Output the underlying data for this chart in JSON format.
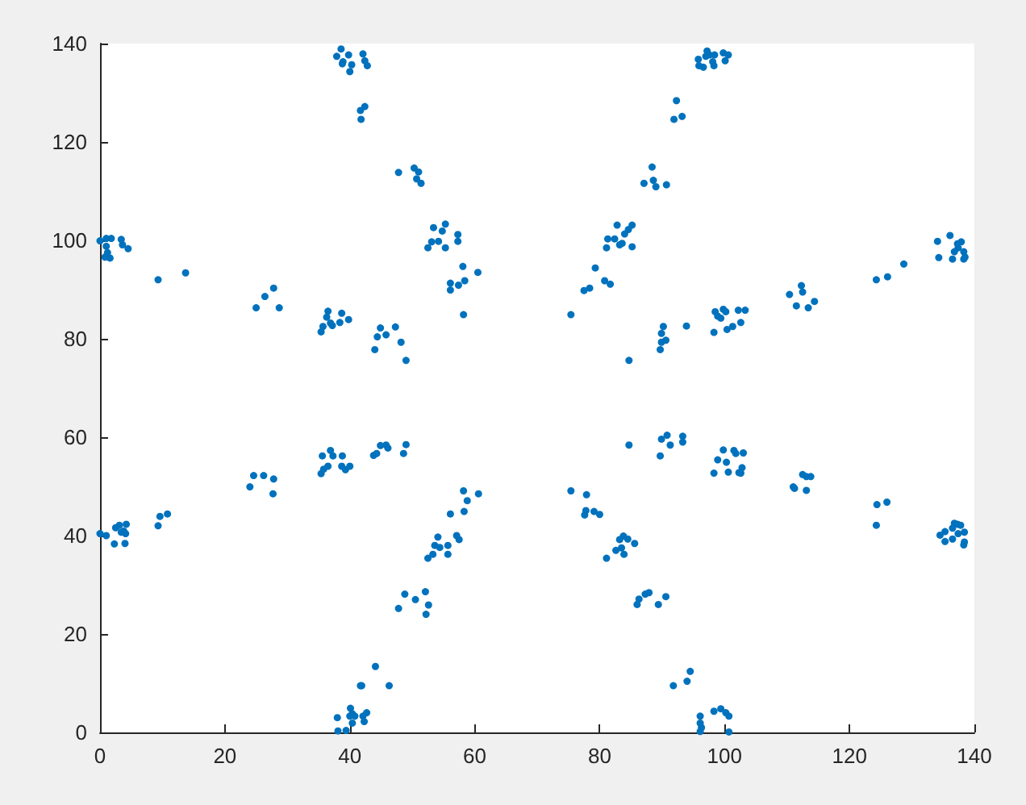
{
  "chart_data": {
    "type": "scatter",
    "marker": "circle",
    "grid": false,
    "legend": false,
    "xlim": [
      0,
      140
    ],
    "xticks": [
      0,
      20,
      40,
      60,
      80,
      100,
      120,
      140
    ],
    "ylim": [
      0,
      140
    ],
    "yticks": [
      0,
      20,
      40,
      60,
      80,
      100,
      120,
      140
    ],
    "series": [
      {
        "color": "#0072bd",
        "x": [
          0,
          1.0,
          1.8,
          3.4,
          0.8,
          1.6,
          1.2,
          3.6,
          4.5,
          1.0,
          9.3,
          13.7,
          25.0,
          26.4,
          27.8,
          28.7,
          35.4,
          35.7,
          36.5,
          36.3,
          37.2,
          38.4,
          38.7,
          39.8,
          36.9,
          44.0,
          44.4,
          44.9,
          45.8,
          47.3,
          48.2,
          49.0,
          38.6,
          37.9,
          38.9,
          39.8,
          40.3,
          40.0,
          38.8,
          42.1,
          42.4,
          42.8,
          42.4,
          41.7,
          41.8,
          47.8,
          50.3,
          51.0,
          50.7,
          51.4,
          53.4,
          55.3,
          54.8,
          54.2,
          53.1,
          52.5,
          55.3,
          57.3,
          57.3,
          58.1,
          60.5,
          56.1,
          58.4,
          57.4,
          56.1,
          58.2,
          75.4,
          77.5,
          78.4,
          79.3,
          80.8,
          81.7,
          82.8,
          81.3,
          82.4,
          81.1,
          83.2,
          83.6,
          84.0,
          85.2,
          84.6,
          85.2,
          84.7,
          87.1,
          88.4,
          88.6,
          89.0,
          90.7,
          91.9,
          92.3,
          93.2,
          89.7,
          89.9,
          90.2,
          90.6,
          89.9,
          93.9,
          95.8,
          95.9,
          96.6,
          97.2,
          97.6,
          97.0,
          98.1,
          98.3,
          98.4,
          99.8,
          100.1,
          100.6,
          98.3,
          98.5,
          98.9,
          99.4,
          99.8,
          100.2,
          100.4,
          101.3,
          102.2,
          103.3,
          102.6,
          110.4,
          111.5,
          112.3,
          112.5,
          113.4,
          114.4,
          124.3,
          126.1,
          128.7,
          134.1,
          136.1,
          134.3,
          136.5,
          137.3,
          137.9,
          136.8,
          137.4,
          138.3,
          138.5,
          138.3,
          0,
          1.0,
          2.3,
          4.0,
          2.5,
          3.1,
          4.2,
          3.4,
          3.8,
          4.1,
          9.3,
          9.6,
          10.8,
          24.0,
          24.6,
          26.2,
          27.8,
          27.7,
          35.4,
          35.8,
          36.5,
          35.6,
          36.9,
          37.3,
          38.8,
          38.7,
          39.3,
          40.0,
          43.8,
          44.3,
          44.9,
          45.8,
          46.1,
          48.6,
          49.0,
          58.2,
          60.6,
          58.8,
          56.1,
          58.3,
          57.1,
          57.5,
          54.1,
          53.6,
          54.4,
          55.7,
          53.3,
          52.5,
          55.7,
          48.8,
          47.8,
          50.5,
          52.1,
          52.6,
          52.2,
          44.1,
          46.3,
          75.4,
          77.9,
          77.8,
          77.6,
          79.1,
          80.0,
          83.2,
          83.8,
          84.5,
          83.5,
          82.6,
          83.9,
          85.6,
          81.1,
          84.7,
          89.9,
          90.8,
          91.3,
          89.7,
          93.3,
          93.3,
          86.0,
          86.3,
          87.3,
          87.9,
          90.6,
          89.4,
          91.8,
          94.0,
          94.5,
          96.1,
          96.1,
          96.3,
          96.1,
          98.3,
          99.4,
          100.2,
          100.7,
          100.7,
          98.3,
          98.9,
          99.8,
          100.3,
          100.6,
          101.5,
          101.8,
          103.0,
          102.3,
          102.6,
          102.8,
          111.0,
          111.2,
          112.5,
          113.1,
          113.8,
          113.1,
          124.3,
          124.4,
          126.0,
          134.5,
          135.3,
          135.3,
          136.5,
          136.5,
          136.8,
          137.3,
          137.8,
          137.4,
          138.4,
          138.3,
          138.4,
          38.0,
          38.1,
          39.4,
          40.1,
          40.4,
          40.8,
          40.0,
          40.4,
          42.1,
          42.7,
          42.3,
          41.7,
          41.9
        ],
        "values": [
          99.9,
          100.4,
          100.4,
          100.2,
          96.6,
          96.4,
          97.5,
          99.1,
          98.3,
          98.8,
          92.0,
          93.4,
          86.3,
          88.6,
          90.3,
          86.3,
          81.4,
          82.5,
          85.6,
          84.4,
          82.7,
          83.3,
          85.2,
          83.9,
          83.2,
          77.8,
          80.4,
          82.2,
          80.8,
          82.4,
          79.3,
          75.6,
          138.9,
          137.4,
          136.3,
          137.7,
          135.7,
          134.3,
          135.9,
          137.9,
          136.5,
          135.5,
          127.2,
          126.4,
          124.6,
          113.8,
          114.7,
          113.9,
          112.5,
          111.6,
          102.6,
          103.3,
          101.9,
          99.8,
          99.7,
          98.5,
          98.5,
          101.2,
          99.8,
          94.7,
          93.5,
          91.3,
          91.8,
          90.9,
          89.9,
          84.9,
          84.9,
          89.8,
          90.3,
          94.4,
          91.8,
          91.1,
          103.1,
          100.3,
          100.3,
          98.5,
          99.1,
          99.4,
          101.3,
          103.1,
          102.2,
          98.7,
          75.6,
          111.6,
          114.9,
          112.2,
          110.9,
          111.3,
          124.6,
          128.4,
          125.2,
          77.8,
          79.3,
          82.5,
          79.7,
          81.1,
          82.6,
          136.8,
          135.5,
          135.2,
          138.5,
          137.7,
          137.4,
          136.3,
          135.5,
          137.7,
          138.1,
          136.5,
          137.7,
          81.3,
          85.5,
          84.6,
          84.2,
          86.0,
          85.5,
          81.9,
          82.5,
          85.8,
          85.8,
          83.3,
          89.0,
          86.7,
          90.8,
          89.5,
          86.3,
          87.6,
          92.0,
          92.6,
          95.2,
          99.8,
          101.0,
          96.5,
          96.2,
          99.3,
          99.7,
          97.7,
          98.5,
          97.7,
          96.6,
          96.2,
          40.4,
          40.0,
          38.3,
          38.4,
          41.6,
          42.1,
          42.3,
          40.7,
          40.9,
          40.4,
          42.0,
          43.9,
          44.4,
          49.9,
          52.2,
          52.2,
          51.5,
          48.5,
          52.6,
          53.5,
          54.1,
          56.2,
          57.3,
          56.2,
          56.2,
          54.1,
          53.4,
          54.1,
          56.3,
          56.7,
          58.3,
          58.4,
          57.8,
          56.7,
          58.5,
          49.1,
          48.5,
          47.1,
          44.4,
          44.9,
          40.0,
          39.2,
          39.7,
          38.0,
          37.6,
          38.0,
          36.2,
          35.4,
          36.2,
          28.1,
          25.2,
          27.0,
          28.6,
          25.9,
          24.0,
          13.4,
          9.5,
          49.1,
          48.3,
          45.1,
          44.2,
          44.9,
          44.3,
          39.2,
          39.9,
          39.3,
          37.5,
          37.0,
          36.2,
          38.4,
          35.4,
          58.4,
          59.6,
          60.4,
          58.4,
          56.2,
          60.2,
          59.0,
          26.0,
          27.1,
          28.1,
          28.4,
          27.6,
          26.0,
          9.5,
          10.4,
          12.4,
          3.3,
          1.9,
          1.0,
          0.2,
          4.3,
          4.8,
          4.0,
          3.3,
          0.1,
          52.7,
          55.4,
          57.4,
          54.9,
          52.9,
          57.3,
          56.7,
          56.8,
          52.8,
          52.7,
          53.8,
          49.9,
          49.6,
          52.4,
          52.0,
          52.0,
          49.2,
          42.1,
          46.3,
          46.8,
          40.1,
          40.8,
          38.8,
          39.3,
          41.5,
          42.5,
          42.3,
          42.1,
          40.4,
          40.7,
          38.1,
          38.7,
          3.0,
          0.3,
          0.4,
          4.9,
          3.8,
          3.3,
          3.3,
          1.9,
          3.3,
          4.0,
          2.2,
          9.5,
          9.5
        ]
      }
    ]
  }
}
